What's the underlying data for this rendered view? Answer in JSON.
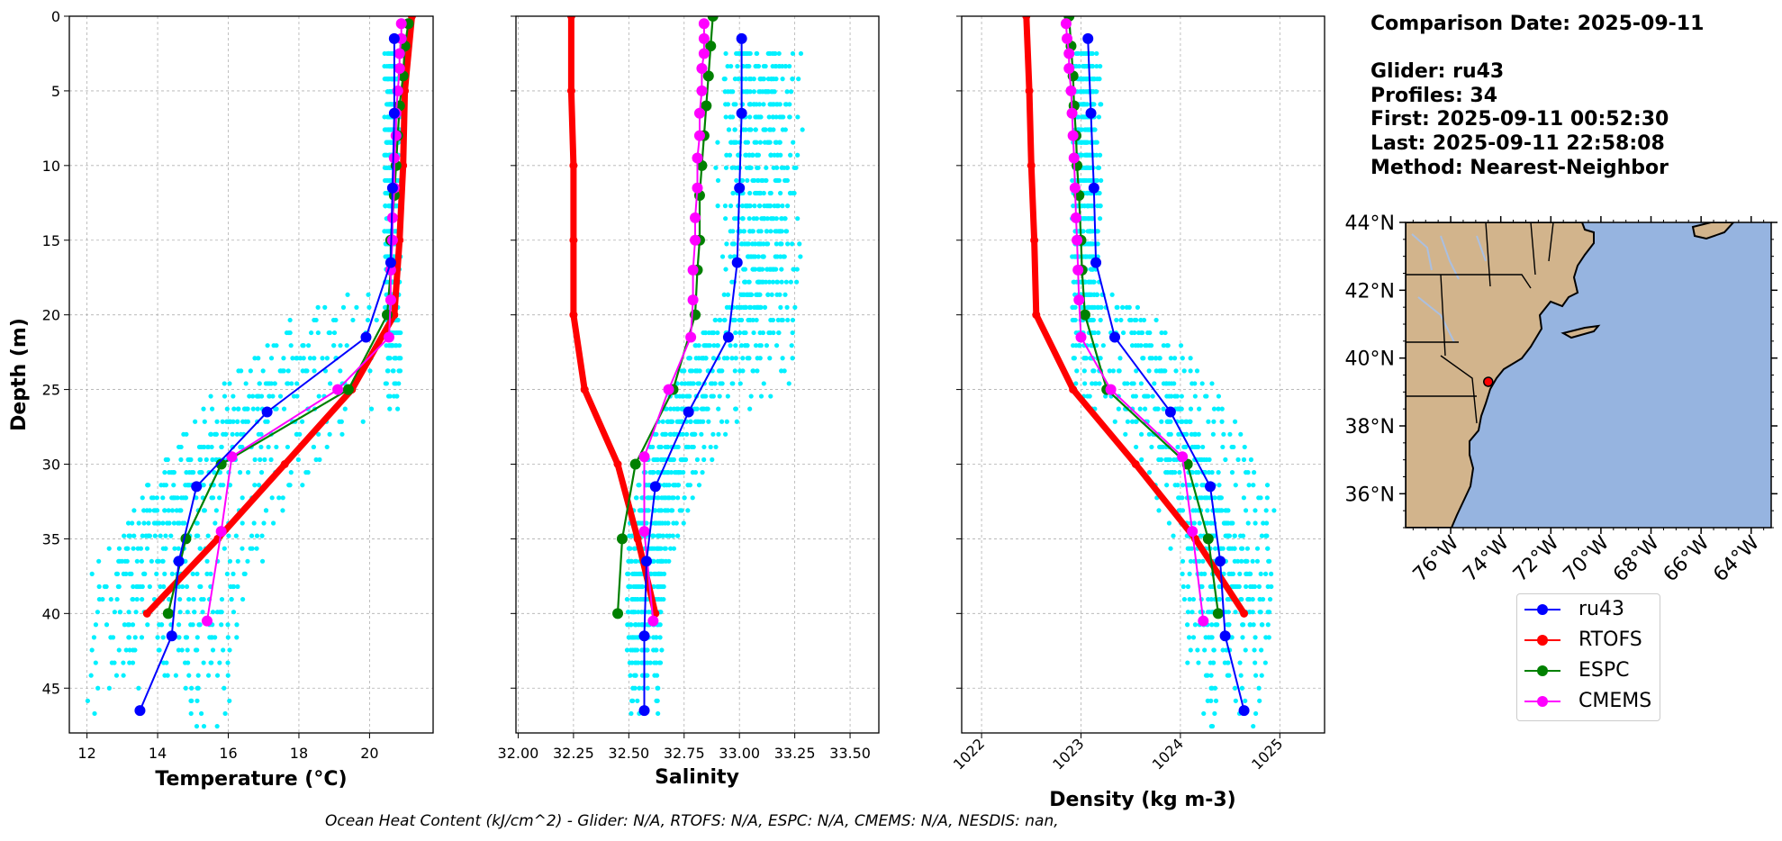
{
  "colors": {
    "glider_scatter": "#00f0ff",
    "glider": "#0000ff",
    "rtofs": "#ff0000",
    "espc": "#008000",
    "cmems": "#ff00ff",
    "land": "#d2b48c",
    "ocean": "#96b4e0"
  },
  "info": {
    "comparison": "Comparison Date: 2025-09-11",
    "glider": "Glider: ru43",
    "profiles": "Profiles: 34",
    "first": "First: 2025-09-11 00:52:30",
    "last": "Last: 2025-09-11 22:58:08",
    "method": "Method: Nearest-Neighbor"
  },
  "legend": [
    {
      "name": "ru43",
      "color": "#0000ff"
    },
    {
      "name": "RTOFS",
      "color": "#ff0000"
    },
    {
      "name": "ESPC",
      "color": "#008000"
    },
    {
      "name": "CMEMS",
      "color": "#ff00ff"
    }
  ],
  "footer": "Ocean Heat Content (kJ/cm^2) - Glider: N/A,  RTOFS: N/A,  ESPC: N/A,  CMEMS: N/A,  NESDIS: nan,",
  "chart_data": [
    {
      "type": "line",
      "id": "temperature",
      "xlabel": "Temperature (°C)",
      "ylabel": "Depth (m)",
      "xlim": [
        11.5,
        21.8
      ],
      "ylim": [
        48,
        0
      ],
      "xticks": [
        12,
        14,
        16,
        18,
        20
      ],
      "yticks": [
        0,
        5,
        10,
        15,
        20,
        25,
        30,
        35,
        40,
        45
      ],
      "grid": true,
      "scatter_cloud": {
        "name": "glider profiles",
        "shallow": [
          20.4,
          20.9
        ],
        "deep_end": [
          12.2,
          16.2
        ]
      },
      "series": [
        {
          "name": "ru43",
          "depth": [
            1.5,
            6.5,
            11.5,
            16.5,
            21.5,
            26.5,
            31.5,
            36.5,
            41.5,
            46.5
          ],
          "values": [
            20.7,
            20.7,
            20.65,
            20.6,
            19.9,
            17.1,
            15.1,
            14.6,
            14.4,
            13.5
          ]
        },
        {
          "name": "RTOFS",
          "depth": [
            0,
            5,
            10,
            15,
            20,
            25,
            30,
            35,
            40
          ],
          "values": [
            21.2,
            21.0,
            20.95,
            20.85,
            20.7,
            19.5,
            17.6,
            15.7,
            13.7
          ]
        },
        {
          "name": "ESPC",
          "depth": [
            0.5,
            2,
            4,
            6,
            8,
            10,
            12,
            15,
            17,
            20,
            25,
            30,
            35,
            40
          ],
          "values": [
            21.1,
            21.0,
            20.95,
            20.85,
            20.8,
            20.75,
            20.7,
            20.6,
            20.6,
            20.5,
            19.4,
            15.8,
            14.8,
            14.3
          ]
        },
        {
          "name": "CMEMS",
          "depth": [
            0.5,
            1.5,
            2.5,
            3.5,
            5,
            6.5,
            8,
            9.5,
            11.5,
            13.5,
            15,
            17,
            19,
            21.5,
            25,
            29.5,
            34.5,
            40.5
          ],
          "values": [
            20.9,
            20.9,
            20.85,
            20.85,
            20.8,
            20.75,
            20.75,
            20.7,
            20.7,
            20.65,
            20.65,
            20.6,
            20.6,
            20.55,
            19.1,
            16.1,
            15.8,
            15.4
          ]
        }
      ]
    },
    {
      "type": "line",
      "id": "salinity",
      "xlabel": "Salinity",
      "xlim": [
        31.99,
        33.63
      ],
      "ylim": [
        48,
        0
      ],
      "xticks": [
        "32.00",
        "32.25",
        "32.50",
        "32.75",
        "33.00",
        "33.25",
        "33.50"
      ],
      "grid": true,
      "scatter_cloud": {
        "name": "glider profiles",
        "shallow": [
          32.85,
          33.3
        ],
        "deep_end": [
          32.5,
          32.65
        ]
      },
      "series": [
        {
          "name": "ru43",
          "depth": [
            1.5,
            6.5,
            11.5,
            16.5,
            21.5,
            26.5,
            31.5,
            36.5,
            41.5,
            46.5
          ],
          "values": [
            33.01,
            33.01,
            33.0,
            32.99,
            32.95,
            32.77,
            32.62,
            32.58,
            32.57,
            32.57
          ]
        },
        {
          "name": "RTOFS",
          "depth": [
            0,
            5,
            10,
            15,
            20,
            25,
            30,
            35,
            40
          ],
          "values": [
            32.24,
            32.24,
            32.25,
            32.25,
            32.25,
            32.3,
            32.45,
            32.54,
            32.62
          ]
        },
        {
          "name": "ESPC",
          "depth": [
            0,
            2,
            4,
            6,
            8,
            10,
            12,
            15,
            17,
            20,
            25,
            30,
            35,
            40
          ],
          "values": [
            32.88,
            32.87,
            32.86,
            32.85,
            32.84,
            32.83,
            32.82,
            32.82,
            32.81,
            32.8,
            32.7,
            32.53,
            32.47,
            32.45
          ]
        },
        {
          "name": "CMEMS",
          "depth": [
            0.5,
            1.5,
            2.5,
            3.5,
            5,
            6.5,
            8,
            9.5,
            11.5,
            13.5,
            15,
            17,
            19,
            21.5,
            25,
            29.5,
            34.5,
            40.5
          ],
          "values": [
            32.84,
            32.84,
            32.84,
            32.83,
            32.83,
            32.82,
            32.82,
            32.81,
            32.81,
            32.8,
            32.8,
            32.79,
            32.79,
            32.78,
            32.68,
            32.57,
            32.57,
            32.61
          ]
        }
      ]
    },
    {
      "type": "line",
      "id": "density",
      "xlabel": "Density (kg m-3)",
      "xlim": [
        1021.8,
        1025.45
      ],
      "ylim": [
        48,
        0
      ],
      "xticks": [
        1022,
        1023,
        1024,
        1025
      ],
      "grid": true,
      "scatter_cloud": {
        "name": "glider profiles",
        "shallow": [
          1022.9,
          1023.2
        ],
        "deep_end": [
          1024.1,
          1024.9
        ]
      },
      "series": [
        {
          "name": "ru43",
          "depth": [
            1.5,
            6.5,
            11.5,
            16.5,
            21.5,
            26.5,
            31.5,
            36.5,
            41.5,
            46.5
          ],
          "values": [
            1023.07,
            1023.1,
            1023.13,
            1023.15,
            1023.34,
            1023.9,
            1024.3,
            1024.4,
            1024.45,
            1024.64
          ]
        },
        {
          "name": "RTOFS",
          "depth": [
            0,
            5,
            10,
            15,
            20,
            25,
            30,
            35,
            40
          ],
          "values": [
            1022.45,
            1022.48,
            1022.5,
            1022.53,
            1022.55,
            1022.92,
            1023.55,
            1024.15,
            1024.64
          ]
        },
        {
          "name": "ESPC",
          "depth": [
            0,
            2,
            4,
            6,
            8,
            10,
            12,
            15,
            17,
            20,
            25,
            30,
            35,
            40
          ],
          "values": [
            1022.88,
            1022.9,
            1022.92,
            1022.93,
            1022.95,
            1022.96,
            1022.98,
            1023.0,
            1023.01,
            1023.04,
            1023.26,
            1024.07,
            1024.28,
            1024.38
          ]
        },
        {
          "name": "CMEMS",
          "depth": [
            0.5,
            1.5,
            2.5,
            3.5,
            5,
            6.5,
            8,
            9.5,
            11.5,
            13.5,
            15,
            17,
            19,
            21.5,
            25,
            29.5,
            34.5,
            40.5
          ],
          "values": [
            1022.85,
            1022.86,
            1022.88,
            1022.88,
            1022.9,
            1022.91,
            1022.92,
            1022.93,
            1022.94,
            1022.95,
            1022.96,
            1022.97,
            1022.98,
            1023.0,
            1023.3,
            1024.02,
            1024.12,
            1024.23
          ]
        }
      ]
    },
    {
      "type": "map",
      "id": "location",
      "lon_range": [
        -77.8,
        -63.2
      ],
      "lat_range": [
        35.0,
        44.0
      ],
      "lon_ticks": [
        "76°W",
        "74°W",
        "72°W",
        "70°W",
        "68°W",
        "66°W",
        "64°W"
      ],
      "lat_ticks": [
        "36°N",
        "38°N",
        "40°N",
        "42°N",
        "44°N"
      ],
      "lon_tick_values": [
        -76,
        -74,
        -72,
        -70,
        -68,
        -66,
        -64
      ],
      "lat_tick_values": [
        36,
        38,
        40,
        42,
        44
      ],
      "glider_position": {
        "lon": -74.5,
        "lat": 39.3
      }
    }
  ]
}
